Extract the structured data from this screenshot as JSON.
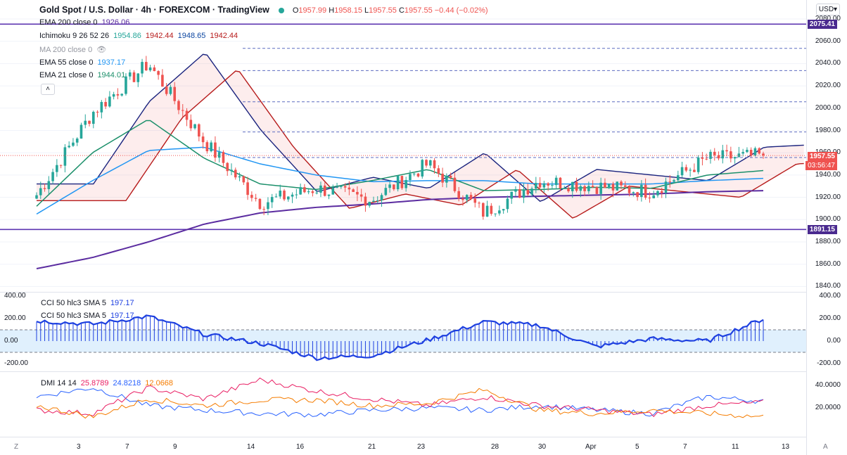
{
  "header": {
    "symbol": "Gold Spot / U.S. Dollar · 4h · FOREXCOM · TradingView",
    "open_label": "O",
    "open": "1957.99",
    "high_label": "H",
    "high": "1958.15",
    "low_label": "L",
    "low": "1957.55",
    "close_label": "C",
    "close": "1957.55",
    "change": "−0.44 (−0.02%)"
  },
  "currency_button": "USD",
  "indicators": {
    "ema200": {
      "label": "EMA 200 close 0",
      "value": "1926.06"
    },
    "ichimoku": {
      "label": "Ichimoku 9 26 52 26",
      "v1": "1954.86",
      "v2": "1942.44",
      "v3": "1948.65",
      "v4": "1942.44"
    },
    "ma200": {
      "label": "MA 200 close 0"
    },
    "ema55": {
      "label": "EMA 55 close 0",
      "value": "1937.17"
    },
    "ema21": {
      "label": "EMA 21 close 0",
      "value": "1944.01"
    }
  },
  "price_axis": {
    "ticks": [
      "2080.00",
      "2060.00",
      "2040.00",
      "2020.00",
      "2000.00",
      "1980.00",
      "1960.00",
      "1940.00",
      "1920.00",
      "1900.00",
      "1880.00",
      "1860.00",
      "1840.00"
    ],
    "level_high": "2075.41",
    "level_low": "1891.15",
    "last_price": "1957.55",
    "countdown": "03:56:47"
  },
  "cci": {
    "label1": "CCI 50 hlc3 SMA 5",
    "value1": "197.17",
    "label2": "CCI 50 hlc3 SMA 5",
    "value2": "197.17",
    "ticks": [
      "400.00",
      "200.00",
      "0.00",
      "-200.00"
    ],
    "left_ticks": [
      "400.00",
      "200.00",
      "0.00",
      "-200.00"
    ]
  },
  "dmi": {
    "label": "DMI 14 14",
    "plus": "25.8789",
    "minus": "24.8218",
    "adx": "12.0668",
    "ticks": [
      "40.0000",
      "20.0000"
    ]
  },
  "time_axis": [
    "3",
    "7",
    "9",
    "14",
    "16",
    "21",
    "23",
    "28",
    "30",
    "Apr",
    "5",
    "7",
    "11",
    "13"
  ],
  "colors": {
    "up": "#26a69a",
    "down": "#ef5350",
    "ema200": "#5b2ca0",
    "kijun": "#b71c1c",
    "tenkan": "#0d47a1",
    "ema55": "#2196f3",
    "ema21": "#1b8f6a",
    "cci": "#1e40e0",
    "dmi_plus": "#2962ff",
    "dmi_minus": "#e91e63",
    "adx": "#f57c00",
    "level": "#5e35b1"
  },
  "chart_data": [
    {
      "type": "line",
      "title": "Gold Spot / U.S. Dollar · 4h · FOREXCOM · TradingView",
      "x": [
        "3",
        "7",
        "9",
        "14",
        "16",
        "21",
        "23",
        "28",
        "30",
        "Apr",
        "5",
        "7",
        "11",
        "13"
      ],
      "ylim": [
        1840,
        2080
      ],
      "series": [
        {
          "name": "EMA 200 close 0",
          "values": [
            1856,
            1866,
            1880,
            1896,
            1906,
            1911,
            1914,
            1918,
            1920,
            1921,
            1922,
            1923,
            1925,
            1926
          ]
        },
        {
          "name": "EMA 55 close 0",
          "values": [
            1905,
            1935,
            1962,
            1965,
            1950,
            1940,
            1934,
            1935,
            1935,
            1932,
            1932,
            1932,
            1935,
            1937
          ]
        },
        {
          "name": "EMA 21 close 0",
          "values": [
            1912,
            1960,
            1990,
            1955,
            1932,
            1927,
            1935,
            1945,
            1926,
            1927,
            1929,
            1928,
            1940,
            1944
          ]
        },
        {
          "name": "Close",
          "values": [
            1922,
            1996,
            2040,
            1970,
            1915,
            1928,
            1918,
            1950,
            1906,
            1935,
            1930,
            1925,
            1955,
            1957.55
          ]
        }
      ],
      "levels": [
        2075.41,
        1891.15
      ]
    },
    {
      "type": "bar",
      "title": "CCI 50 hlc3 SMA 5",
      "ylim": [
        -250,
        400
      ],
      "values": [
        180,
        150,
        220,
        60,
        -20,
        -150,
        -130,
        10,
        170,
        140,
        -50,
        20,
        0,
        197.17
      ]
    },
    {
      "type": "line",
      "title": "DMI 14 14",
      "ylim": [
        0,
        50
      ],
      "series": [
        {
          "name": "+DI",
          "values": [
            30,
            38,
            22,
            18,
            15,
            14,
            18,
            20,
            18,
            22,
            18,
            15,
            30,
            25.8789
          ]
        },
        {
          "name": "-DI",
          "values": [
            18,
            15,
            38,
            28,
            45,
            35,
            28,
            22,
            30,
            22,
            18,
            14,
            22,
            24.8218
          ]
        },
        {
          "name": "ADX",
          "values": [
            22,
            12,
            28,
            22,
            27,
            27,
            22,
            24,
            36,
            18,
            15,
            18,
            15,
            12.0668
          ]
        }
      ]
    }
  ]
}
